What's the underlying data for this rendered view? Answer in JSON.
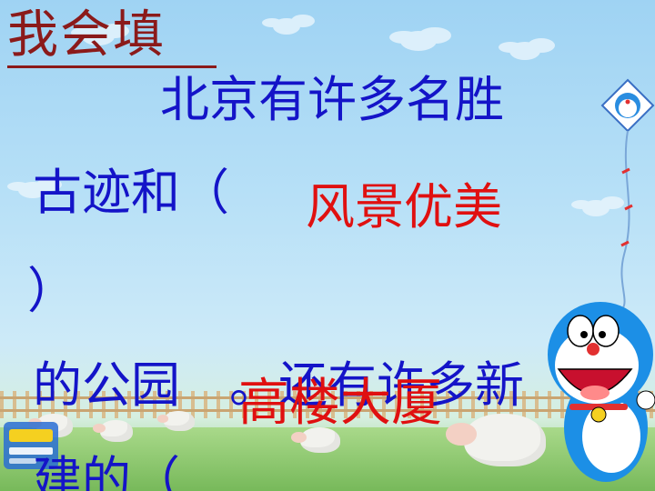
{
  "title": "我会填",
  "lines": {
    "line1": "北京有许多名胜",
    "line2a": "古迹和（",
    "answer1": "风景优美",
    "line3": "）",
    "line4a": "的公园",
    "line4b": "。还有许多新",
    "answer2": "高楼大厦",
    "line5": "建的（"
  },
  "colors": {
    "title": "#8b1a1a",
    "text": "#1414c8",
    "answer": "#e01010"
  },
  "icons": {
    "kite": "doraemon-kite-icon",
    "character": "doraemon-character-icon",
    "logo": "site-logo-icon"
  }
}
